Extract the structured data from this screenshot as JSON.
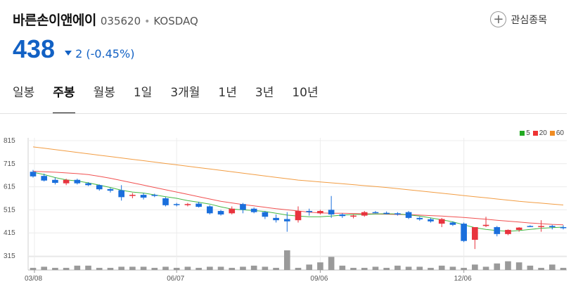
{
  "header": {
    "name": "바른손이앤에이",
    "code": "035620",
    "separator": "•",
    "market": "KOSDAQ",
    "watch_label": "관심종목",
    "watch_icon": "plus-icon"
  },
  "quote": {
    "price": "438",
    "change": "2 (-0.45%)",
    "direction": "down",
    "color": "#1261c4"
  },
  "tabs": [
    {
      "label": "일봉",
      "active": false
    },
    {
      "label": "주봉",
      "active": true
    },
    {
      "label": "월봉",
      "active": false
    },
    {
      "label": "1일",
      "active": false
    },
    {
      "label": "3개월",
      "active": false
    },
    {
      "label": "1년",
      "active": false
    },
    {
      "label": "3년",
      "active": false
    },
    {
      "label": "10년",
      "active": false
    }
  ],
  "legend": [
    {
      "label": "5",
      "color": "#22aa22"
    },
    {
      "label": "20",
      "color": "#ee3333"
    },
    {
      "label": "60",
      "color": "#f08c22"
    }
  ],
  "chart_data": {
    "type": "candlestick",
    "y_ticks": [
      815,
      715,
      615,
      515,
      415,
      315
    ],
    "ylim": [
      315,
      815
    ],
    "x_tick_labels": [
      {
        "label": "03/08",
        "index": 0
      },
      {
        "label": "06/07",
        "index": 13
      },
      {
        "label": "09/06",
        "index": 26
      },
      {
        "label": "12/06",
        "index": 39
      }
    ],
    "grid": true,
    "up_color": "#e8343e",
    "down_color": "#1a6fdc",
    "candles": [
      [
        680,
        688,
        655,
        660
      ],
      [
        662,
        672,
        638,
        642
      ],
      [
        645,
        655,
        625,
        632
      ],
      [
        630,
        650,
        622,
        645
      ],
      [
        645,
        650,
        625,
        630
      ],
      [
        630,
        635,
        618,
        622
      ],
      [
        622,
        625,
        598,
        604
      ],
      [
        605,
        610,
        590,
        598
      ],
      [
        600,
        622,
        555,
        570
      ],
      [
        578,
        588,
        565,
        580
      ],
      [
        580,
        588,
        560,
        568
      ],
      [
        580,
        585,
        570,
        576
      ],
      [
        565,
        570,
        530,
        535
      ],
      [
        540,
        545,
        530,
        538
      ],
      [
        538,
        545,
        530,
        540
      ],
      [
        542,
        550,
        525,
        528
      ],
      [
        530,
        535,
        495,
        500
      ],
      [
        510,
        515,
        490,
        495
      ],
      [
        500,
        530,
        495,
        520
      ],
      [
        540,
        545,
        500,
        515
      ],
      [
        520,
        525,
        500,
        505
      ],
      [
        505,
        510,
        475,
        485
      ],
      [
        480,
        495,
        460,
        470
      ],
      [
        475,
        505,
        420,
        465
      ],
      [
        470,
        530,
        460,
        510
      ],
      [
        510,
        520,
        490,
        505
      ],
      [
        500,
        515,
        495,
        510
      ],
      [
        515,
        575,
        480,
        495
      ],
      [
        495,
        500,
        480,
        488
      ],
      [
        488,
        495,
        478,
        490
      ],
      [
        490,
        510,
        485,
        505
      ],
      [
        505,
        510,
        500,
        503
      ],
      [
        502,
        508,
        495,
        498
      ],
      [
        500,
        505,
        490,
        495
      ],
      [
        505,
        510,
        475,
        480
      ],
      [
        480,
        485,
        468,
        474
      ],
      [
        474,
        480,
        460,
        465
      ],
      [
        455,
        480,
        440,
        475
      ],
      [
        460,
        465,
        445,
        450
      ],
      [
        455,
        460,
        375,
        380
      ],
      [
        385,
        440,
        345,
        440
      ],
      [
        445,
        485,
        440,
        450
      ],
      [
        440,
        445,
        400,
        410
      ],
      [
        410,
        430,
        405,
        428
      ],
      [
        428,
        440,
        420,
        438
      ],
      [
        445,
        448,
        440,
        442
      ],
      [
        442,
        470,
        420,
        445
      ],
      [
        445,
        450,
        430,
        440
      ],
      [
        440,
        448,
        430,
        438
      ]
    ],
    "ma5": [
      678,
      668,
      655,
      645,
      640,
      632,
      622,
      612,
      600,
      592,
      588,
      580,
      572,
      565,
      555,
      548,
      540,
      528,
      518,
      515,
      512,
      508,
      500,
      492,
      488,
      485,
      485,
      488,
      492,
      495,
      495,
      497,
      498,
      497,
      493,
      488,
      480,
      472,
      463,
      450,
      438,
      430,
      425,
      422,
      425,
      430,
      435,
      438,
      440
    ],
    "ma20": [
      682,
      680,
      678,
      675,
      672,
      668,
      660,
      652,
      642,
      632,
      622,
      612,
      602,
      592,
      582,
      572,
      562,
      552,
      545,
      538,
      532,
      526,
      520,
      515,
      510,
      505,
      502,
      500,
      500,
      499,
      498,
      497,
      496,
      495,
      494,
      492,
      490,
      488,
      485,
      482,
      478,
      474,
      470,
      466,
      462,
      458,
      455,
      452,
      450
    ],
    "ma60": [
      788,
      782,
      776,
      770,
      764,
      758,
      752,
      746,
      740,
      734,
      728,
      722,
      716,
      710,
      704,
      698,
      692,
      686,
      680,
      674,
      668,
      662,
      656,
      650,
      644,
      640,
      636,
      632,
      628,
      624,
      620,
      616,
      612,
      607,
      602,
      597,
      592,
      587,
      582,
      577,
      572,
      567,
      562,
      557,
      552,
      548,
      544,
      540,
      536
    ],
    "volume": [
      2,
      3,
      2,
      2,
      4,
      4,
      2,
      2,
      3,
      3,
      3,
      2,
      3,
      2,
      3,
      2,
      3,
      3,
      2,
      3,
      4,
      3,
      2,
      4,
      2,
      5,
      3,
      2,
      4,
      2,
      2,
      3,
      2,
      4,
      3,
      3,
      2,
      4,
      3,
      2,
      5,
      3,
      6,
      8,
      7,
      4,
      2,
      5,
      2
    ],
    "volume_extras": {
      "23": 18,
      "27": 12,
      "26": 7
    }
  }
}
